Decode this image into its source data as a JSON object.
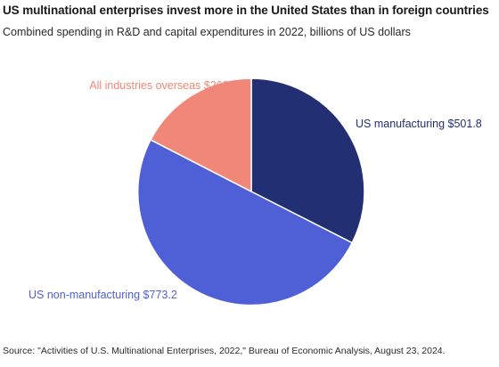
{
  "header": {
    "title": "US multinational enterprises invest more in the United States than in foreign countries",
    "subtitle": "Combined spending in R&D and capital expenditures in 2022, billions of US dollars"
  },
  "footer": {
    "source": "Source: \"Activities of U.S. Multinational Enterprises, 2022,\" Bureau of Economic Analysis, August 23, 2024."
  },
  "chart_data": {
    "type": "pie",
    "title": "US multinational enterprises invest more in the United States than in foreign countries",
    "subtitle": "Combined spending in R&D and capital expenditures in 2022, billions of US dollars",
    "slices": [
      {
        "label": "US manufacturing $501.8",
        "value": 501.8,
        "color": "#222f73"
      },
      {
        "label": "US non-manufacturing $773.2",
        "value": 773.2,
        "color": "#4f5fd6"
      },
      {
        "label": "All industries overseas $269.3",
        "value": 269.3,
        "color": "#f08778"
      }
    ],
    "start_angle": "12 o'clock",
    "direction": "clockwise",
    "legend": "none (direct labels)"
  }
}
